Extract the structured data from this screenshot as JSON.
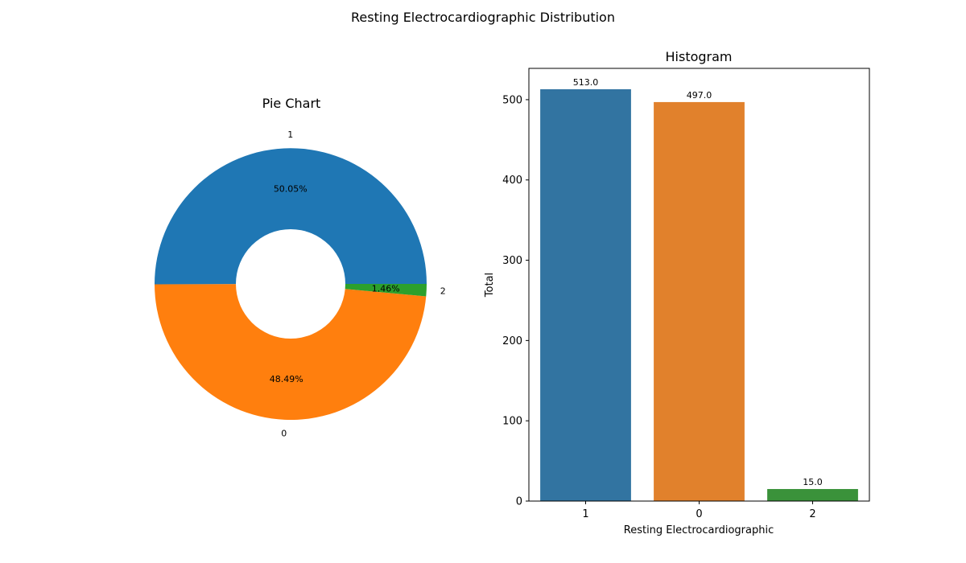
{
  "figure": {
    "suptitle": "Resting Electrocardiographic Distribution"
  },
  "chart_data": [
    {
      "type": "pie",
      "title": "Pie Chart",
      "donut": true,
      "categories": [
        "1",
        "0",
        "2"
      ],
      "values": [
        513,
        497,
        15
      ],
      "percent_labels": [
        "50.05%",
        "48.49%",
        "1.46%"
      ],
      "colors": [
        "#1f77b4",
        "#ff7f0e",
        "#2ca02c"
      ]
    },
    {
      "type": "bar",
      "title": "Histogram",
      "categories": [
        "1",
        "0",
        "2"
      ],
      "values": [
        513,
        497,
        15
      ],
      "data_labels": [
        "513.0",
        "497.0",
        "15.0"
      ],
      "xlabel": "Resting Electrocardiographic",
      "ylabel": "Total",
      "ylim": [
        0,
        539
      ],
      "yticks": [
        0,
        100,
        200,
        300,
        400,
        500
      ],
      "colors": [
        "#3274a1",
        "#e1812c",
        "#3a923a"
      ],
      "grid": false
    }
  ]
}
